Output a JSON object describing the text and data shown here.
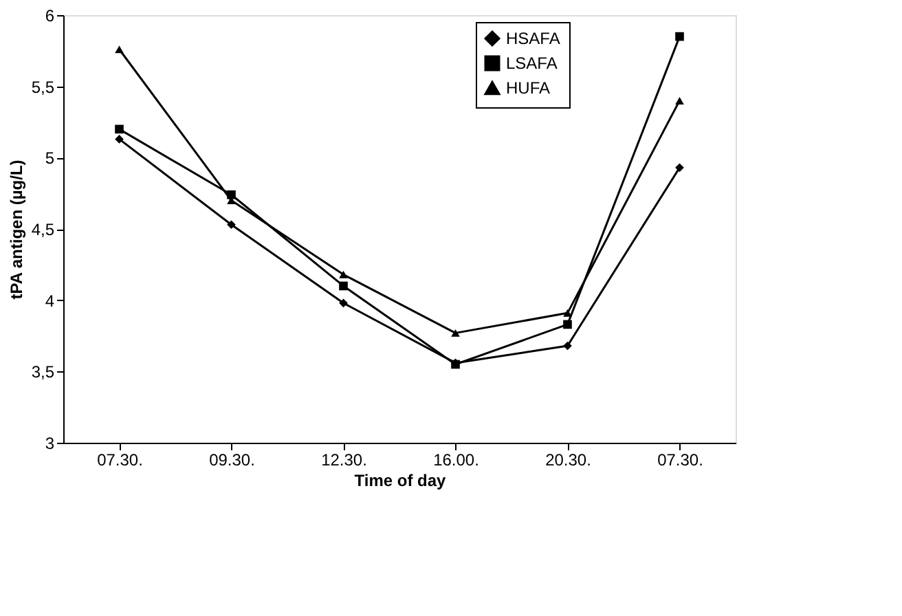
{
  "chart_data": {
    "type": "line",
    "xlabel": "Time of day",
    "ylabel": "tPA antigen (µg/L)",
    "categories": [
      "07.30.",
      "09.30.",
      "12.30.",
      "16.00.",
      "20.30.",
      "07.30."
    ],
    "series": [
      {
        "name": "HSAFA",
        "color": "#000000",
        "marker": "diamond",
        "values": [
          5.13,
          4.53,
          3.98,
          3.56,
          3.68,
          4.93
        ]
      },
      {
        "name": "LSAFA",
        "color": "#000000",
        "marker": "square",
        "values": [
          5.2,
          4.74,
          4.1,
          3.55,
          3.83,
          5.85
        ]
      },
      {
        "name": "HUFA",
        "color": "#000000",
        "marker": "triangle",
        "values": [
          5.76,
          4.7,
          4.18,
          3.77,
          3.91,
          5.4
        ]
      }
    ],
    "ylim": [
      3,
      6
    ],
    "yticks": [
      3,
      {
        "value": 3.5,
        "label": "3,5"
      },
      4,
      {
        "value": 4.5,
        "label": "4,5"
      },
      5,
      {
        "value": 5.5,
        "label": "5,5"
      },
      6
    ],
    "grid": false,
    "legend": "top right",
    "line_style": "solid"
  }
}
